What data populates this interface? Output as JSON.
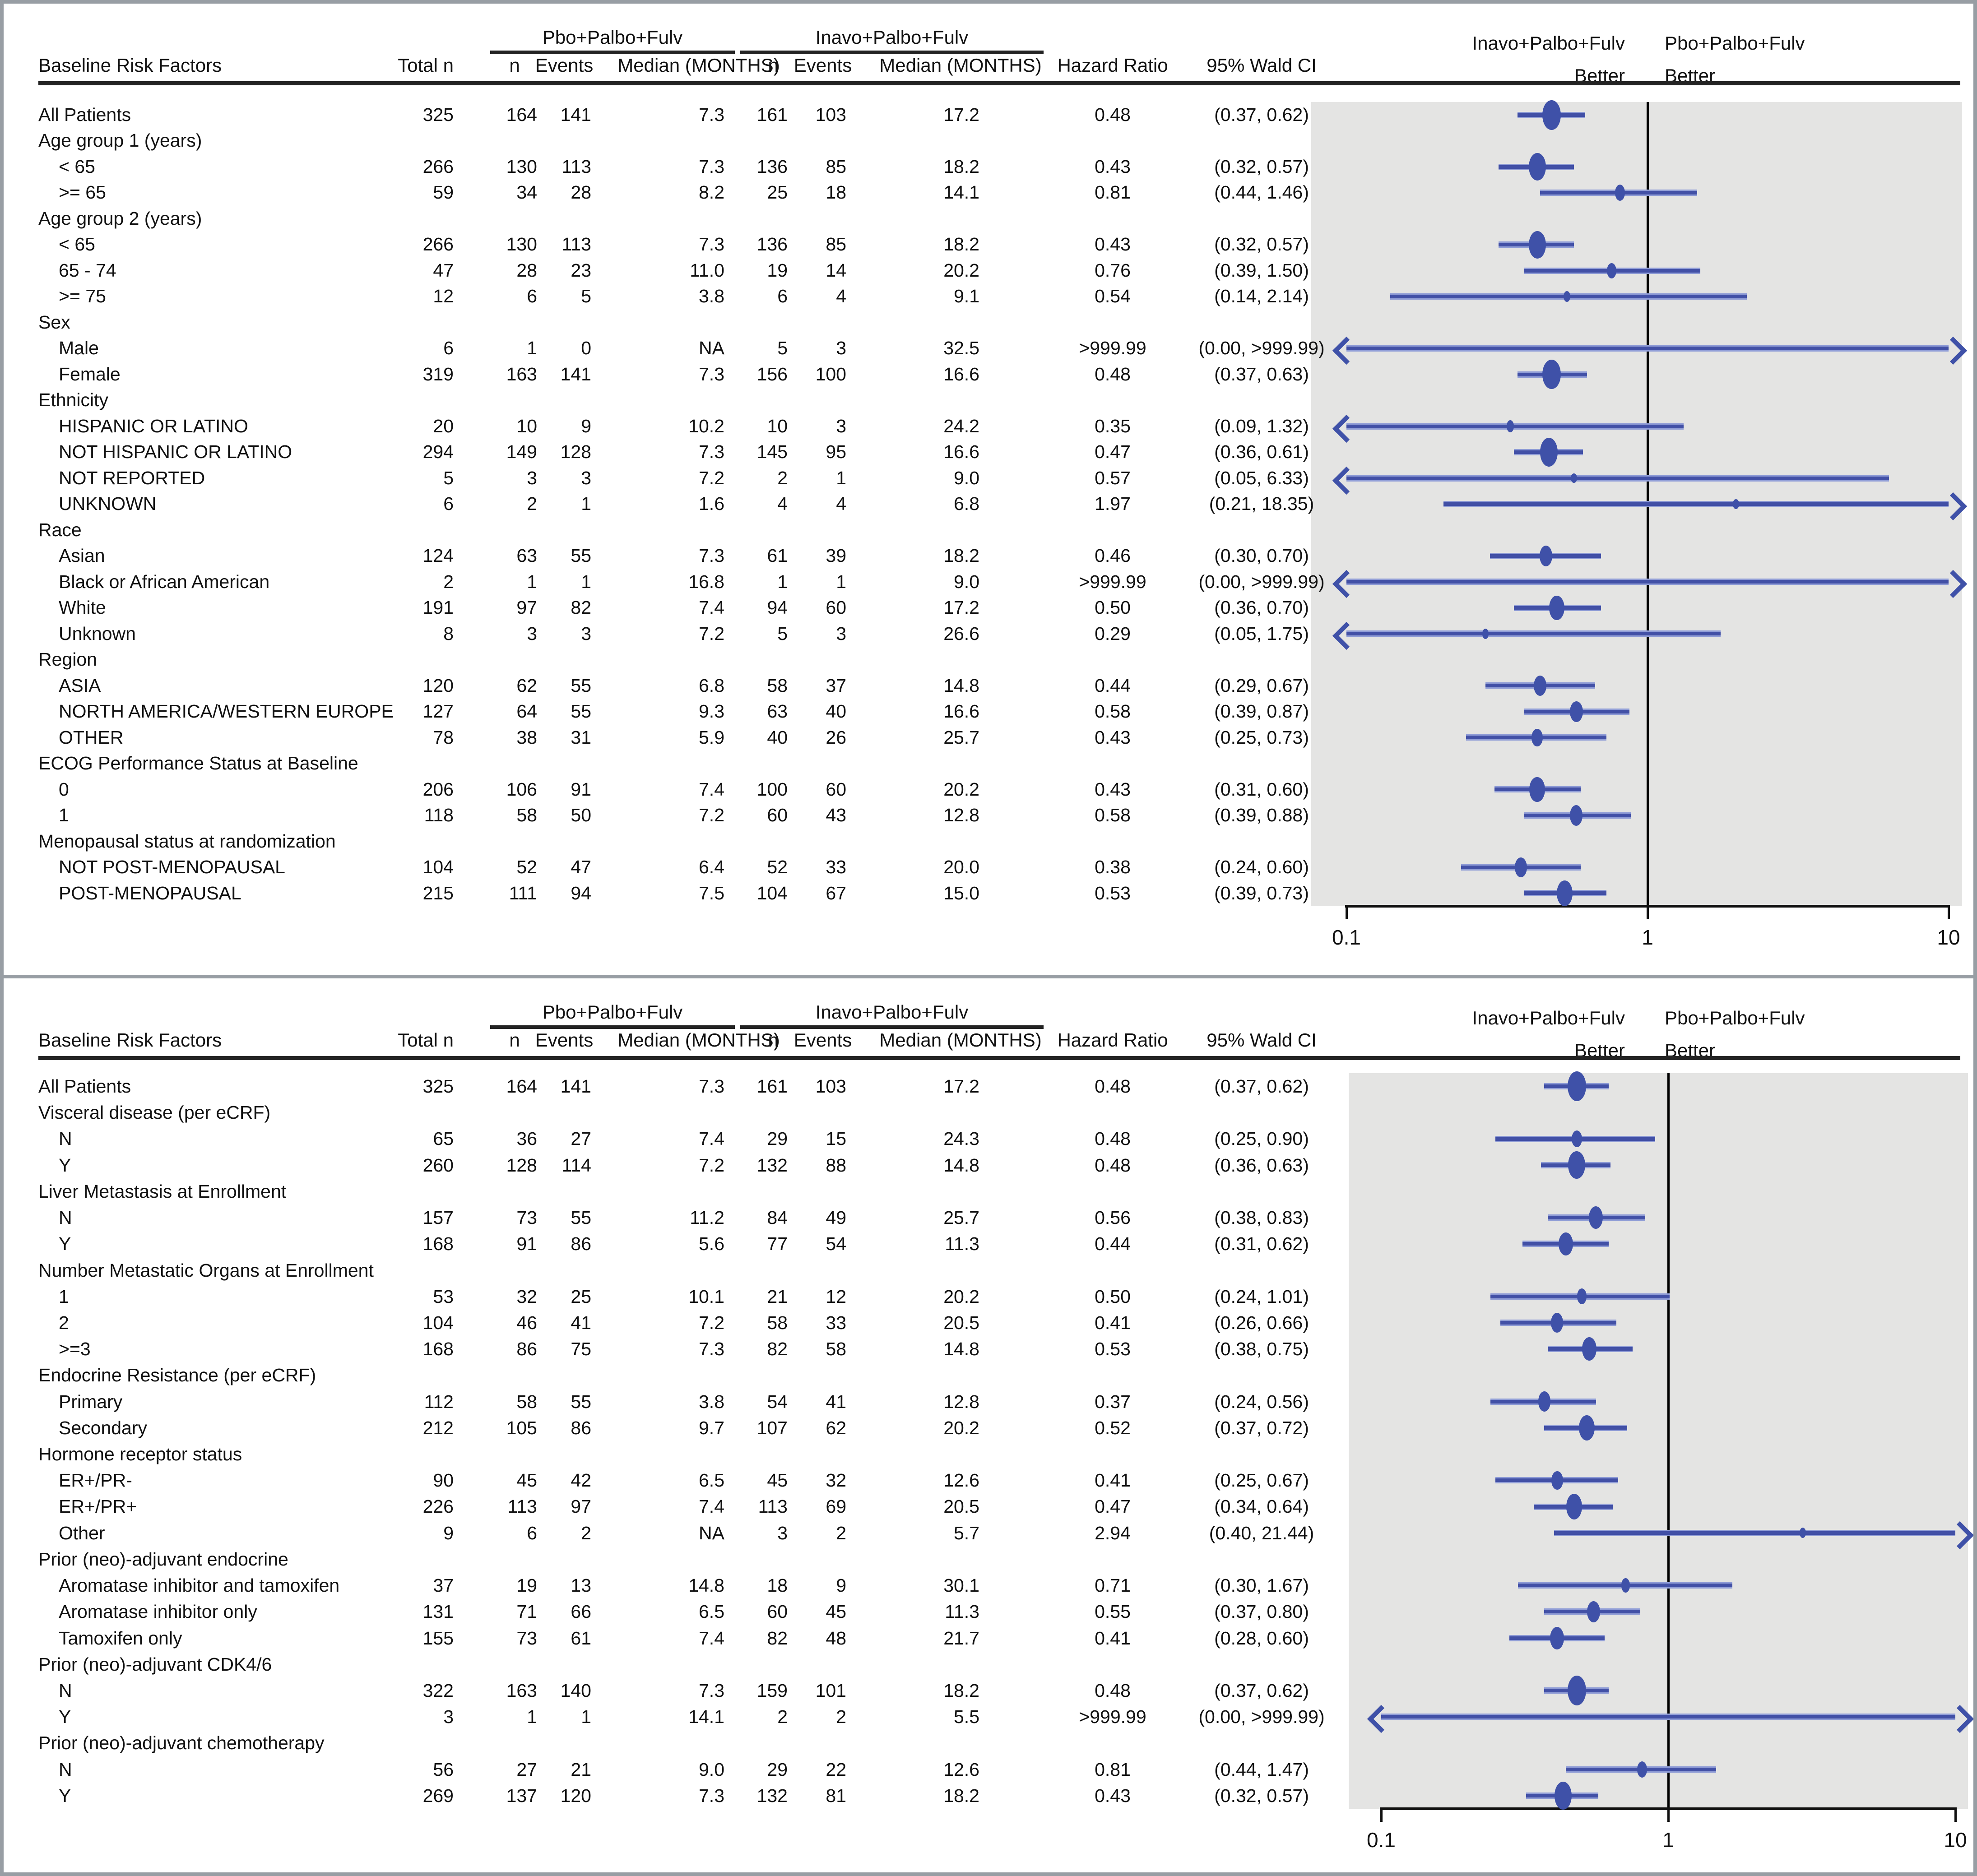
{
  "header": {
    "risk_col": "Baseline Risk Factors",
    "total_col": "Total n",
    "n_col": "n",
    "events_col": "Events",
    "median_col": "Median (MONTHS)",
    "hr_col": "Hazard Ratio",
    "ci_col": "95% Wald CI",
    "arm_pbo": "Pbo+Palbo+Fulv",
    "arm_inavo": "Inavo+Palbo+Fulv"
  },
  "plot_header": {
    "left_line1": "Inavo+Palbo+Fulv",
    "left_line2": "Better",
    "right_line1": "Pbo+Palbo+Fulv",
    "right_line2": "Better"
  },
  "axis": {
    "ticks": [
      "0.1",
      "1",
      "10"
    ]
  },
  "colors": {
    "marker": "#3f51a8",
    "line_core": "#4250a6",
    "line_casing": "#8f9cd6",
    "plot_bg": "#e4e4e3",
    "ref_line": "#000000",
    "text": "#111111",
    "rule": "#232323",
    "frame": "#989ea4"
  },
  "chart_data": {
    "type": "forest",
    "x_scale": "log10",
    "x_range": [
      0.1,
      10
    ],
    "panels": [
      {
        "rows": [
          {
            "label": "All Patients",
            "total": 325,
            "n1": 164,
            "e1": 141,
            "m1": "7.3",
            "n2": 161,
            "e2": 103,
            "m2": "17.2",
            "hr": "0.48",
            "ci": "(0.37, 0.62)",
            "hr_value": 0.48,
            "ci_low": 0.37,
            "ci_high": 0.62
          },
          {
            "label": "Age group 1 (years)"
          },
          {
            "label": "< 65",
            "indent": 1,
            "total": 266,
            "n1": 130,
            "e1": 113,
            "m1": "7.3",
            "n2": 136,
            "e2": 85,
            "m2": "18.2",
            "hr": "0.43",
            "ci": "(0.32, 0.57)",
            "hr_value": 0.43,
            "ci_low": 0.32,
            "ci_high": 0.57
          },
          {
            "label": ">= 65",
            "indent": 1,
            "total": 59,
            "n1": 34,
            "e1": 28,
            "m1": "8.2",
            "n2": 25,
            "e2": 18,
            "m2": "14.1",
            "hr": "0.81",
            "ci": "(0.44, 1.46)",
            "hr_value": 0.81,
            "ci_low": 0.44,
            "ci_high": 1.46
          },
          {
            "label": "Age group 2 (years)"
          },
          {
            "label": "< 65",
            "indent": 1,
            "total": 266,
            "n1": 130,
            "e1": 113,
            "m1": "7.3",
            "n2": 136,
            "e2": 85,
            "m2": "18.2",
            "hr": "0.43",
            "ci": "(0.32, 0.57)",
            "hr_value": 0.43,
            "ci_low": 0.32,
            "ci_high": 0.57
          },
          {
            "label": "65 - 74",
            "indent": 1,
            "total": 47,
            "n1": 28,
            "e1": 23,
            "m1": "11.0",
            "n2": 19,
            "e2": 14,
            "m2": "20.2",
            "hr": "0.76",
            "ci": "(0.39, 1.50)",
            "hr_value": 0.76,
            "ci_low": 0.39,
            "ci_high": 1.5
          },
          {
            "label": ">= 75",
            "indent": 1,
            "total": 12,
            "n1": 6,
            "e1": 5,
            "m1": "3.8",
            "n2": 6,
            "e2": 4,
            "m2": "9.1",
            "hr": "0.54",
            "ci": "(0.14, 2.14)",
            "hr_value": 0.54,
            "ci_low": 0.14,
            "ci_high": 2.14
          },
          {
            "label": "Sex"
          },
          {
            "label": "Male",
            "indent": 1,
            "total": 6,
            "n1": 1,
            "e1": 0,
            "m1": "NA",
            "n2": 5,
            "e2": 3,
            "m2": "32.5",
            "hr": ">999.99",
            "ci": "(0.00, >999.99)",
            "hr_value": null,
            "ci_low": 0,
            "ci_high": 1000
          },
          {
            "label": "Female",
            "indent": 1,
            "total": 319,
            "n1": 163,
            "e1": 141,
            "m1": "7.3",
            "n2": 156,
            "e2": 100,
            "m2": "16.6",
            "hr": "0.48",
            "ci": "(0.37, 0.63)",
            "hr_value": 0.48,
            "ci_low": 0.37,
            "ci_high": 0.63
          },
          {
            "label": "Ethnicity"
          },
          {
            "label": "HISPANIC OR LATINO",
            "indent": 1,
            "total": 20,
            "n1": 10,
            "e1": 9,
            "m1": "10.2",
            "n2": 10,
            "e2": 3,
            "m2": "24.2",
            "hr": "0.35",
            "ci": "(0.09, 1.32)",
            "hr_value": 0.35,
            "ci_low": 0.09,
            "ci_high": 1.32
          },
          {
            "label": "NOT HISPANIC OR LATINO",
            "indent": 1,
            "total": 294,
            "n1": 149,
            "e1": 128,
            "m1": "7.3",
            "n2": 145,
            "e2": 95,
            "m2": "16.6",
            "hr": "0.47",
            "ci": "(0.36, 0.61)",
            "hr_value": 0.47,
            "ci_low": 0.36,
            "ci_high": 0.61
          },
          {
            "label": "NOT REPORTED",
            "indent": 1,
            "total": 5,
            "n1": 3,
            "e1": 3,
            "m1": "7.2",
            "n2": 2,
            "e2": 1,
            "m2": "9.0",
            "hr": "0.57",
            "ci": "(0.05, 6.33)",
            "hr_value": 0.57,
            "ci_low": 0.05,
            "ci_high": 6.33
          },
          {
            "label": "UNKNOWN",
            "indent": 1,
            "total": 6,
            "n1": 2,
            "e1": 1,
            "m1": "1.6",
            "n2": 4,
            "e2": 4,
            "m2": "6.8",
            "hr": "1.97",
            "ci": "(0.21, 18.35)",
            "hr_value": 1.97,
            "ci_low": 0.21,
            "ci_high": 18.35
          },
          {
            "label": "Race"
          },
          {
            "label": "Asian",
            "indent": 1,
            "total": 124,
            "n1": 63,
            "e1": 55,
            "m1": "7.3",
            "n2": 61,
            "e2": 39,
            "m2": "18.2",
            "hr": "0.46",
            "ci": "(0.30, 0.70)",
            "hr_value": 0.46,
            "ci_low": 0.3,
            "ci_high": 0.7
          },
          {
            "label": "Black or African American",
            "indent": 1,
            "total": 2,
            "n1": 1,
            "e1": 1,
            "m1": "16.8",
            "n2": 1,
            "e2": 1,
            "m2": "9.0",
            "hr": ">999.99",
            "ci": "(0.00, >999.99)",
            "hr_value": null,
            "ci_low": 0,
            "ci_high": 1000
          },
          {
            "label": "White",
            "indent": 1,
            "total": 191,
            "n1": 97,
            "e1": 82,
            "m1": "7.4",
            "n2": 94,
            "e2": 60,
            "m2": "17.2",
            "hr": "0.50",
            "ci": "(0.36, 0.70)",
            "hr_value": 0.5,
            "ci_low": 0.36,
            "ci_high": 0.7
          },
          {
            "label": "Unknown",
            "indent": 1,
            "total": 8,
            "n1": 3,
            "e1": 3,
            "m1": "7.2",
            "n2": 5,
            "e2": 3,
            "m2": "26.6",
            "hr": "0.29",
            "ci": "(0.05, 1.75)",
            "hr_value": 0.29,
            "ci_low": 0.05,
            "ci_high": 1.75
          },
          {
            "label": "Region"
          },
          {
            "label": "ASIA",
            "indent": 1,
            "total": 120,
            "n1": 62,
            "e1": 55,
            "m1": "6.8",
            "n2": 58,
            "e2": 37,
            "m2": "14.8",
            "hr": "0.44",
            "ci": "(0.29, 0.67)",
            "hr_value": 0.44,
            "ci_low": 0.29,
            "ci_high": 0.67
          },
          {
            "label": "NORTH AMERICA/WESTERN EUROPE",
            "indent": 1,
            "total": 127,
            "n1": 64,
            "e1": 55,
            "m1": "9.3",
            "n2": 63,
            "e2": 40,
            "m2": "16.6",
            "hr": "0.58",
            "ci": "(0.39, 0.87)",
            "hr_value": 0.58,
            "ci_low": 0.39,
            "ci_high": 0.87
          },
          {
            "label": "OTHER",
            "indent": 1,
            "total": 78,
            "n1": 38,
            "e1": 31,
            "m1": "5.9",
            "n2": 40,
            "e2": 26,
            "m2": "25.7",
            "hr": "0.43",
            "ci": "(0.25, 0.73)",
            "hr_value": 0.43,
            "ci_low": 0.25,
            "ci_high": 0.73
          },
          {
            "label": "ECOG Performance Status at Baseline"
          },
          {
            "label": "0",
            "indent": 1,
            "total": 206,
            "n1": 106,
            "e1": 91,
            "m1": "7.4",
            "n2": 100,
            "e2": 60,
            "m2": "20.2",
            "hr": "0.43",
            "ci": "(0.31, 0.60)",
            "hr_value": 0.43,
            "ci_low": 0.31,
            "ci_high": 0.6
          },
          {
            "label": "1",
            "indent": 1,
            "total": 118,
            "n1": 58,
            "e1": 50,
            "m1": "7.2",
            "n2": 60,
            "e2": 43,
            "m2": "12.8",
            "hr": "0.58",
            "ci": "(0.39, 0.88)",
            "hr_value": 0.58,
            "ci_low": 0.39,
            "ci_high": 0.88
          },
          {
            "label": "Menopausal status at randomization"
          },
          {
            "label": "NOT POST-MENOPAUSAL",
            "indent": 1,
            "total": 104,
            "n1": 52,
            "e1": 47,
            "m1": "6.4",
            "n2": 52,
            "e2": 33,
            "m2": "20.0",
            "hr": "0.38",
            "ci": "(0.24, 0.60)",
            "hr_value": 0.38,
            "ci_low": 0.24,
            "ci_high": 0.6
          },
          {
            "label": "POST-MENOPAUSAL",
            "indent": 1,
            "total": 215,
            "n1": 111,
            "e1": 94,
            "m1": "7.5",
            "n2": 104,
            "e2": 67,
            "m2": "15.0",
            "hr": "0.53",
            "ci": "(0.39, 0.73)",
            "hr_value": 0.53,
            "ci_low": 0.39,
            "ci_high": 0.73
          }
        ]
      },
      {
        "rows": [
          {
            "label": "All Patients",
            "total": 325,
            "n1": 164,
            "e1": 141,
            "m1": "7.3",
            "n2": 161,
            "e2": 103,
            "m2": "17.2",
            "hr": "0.48",
            "ci": "(0.37, 0.62)",
            "hr_value": 0.48,
            "ci_low": 0.37,
            "ci_high": 0.62
          },
          {
            "label": "Visceral disease (per eCRF)"
          },
          {
            "label": "N",
            "indent": 1,
            "total": 65,
            "n1": 36,
            "e1": 27,
            "m1": "7.4",
            "n2": 29,
            "e2": 15,
            "m2": "24.3",
            "hr": "0.48",
            "ci": "(0.25, 0.90)",
            "hr_value": 0.48,
            "ci_low": 0.25,
            "ci_high": 0.9
          },
          {
            "label": "Y",
            "indent": 1,
            "total": 260,
            "n1": 128,
            "e1": 114,
            "m1": "7.2",
            "n2": 132,
            "e2": 88,
            "m2": "14.8",
            "hr": "0.48",
            "ci": "(0.36, 0.63)",
            "hr_value": 0.48,
            "ci_low": 0.36,
            "ci_high": 0.63
          },
          {
            "label": "Liver Metastasis at Enrollment"
          },
          {
            "label": "N",
            "indent": 1,
            "total": 157,
            "n1": 73,
            "e1": 55,
            "m1": "11.2",
            "n2": 84,
            "e2": 49,
            "m2": "25.7",
            "hr": "0.56",
            "ci": "(0.38, 0.83)",
            "hr_value": 0.56,
            "ci_low": 0.38,
            "ci_high": 0.83
          },
          {
            "label": "Y",
            "indent": 1,
            "total": 168,
            "n1": 91,
            "e1": 86,
            "m1": "5.6",
            "n2": 77,
            "e2": 54,
            "m2": "11.3",
            "hr": "0.44",
            "ci": "(0.31, 0.62)",
            "hr_value": 0.44,
            "ci_low": 0.31,
            "ci_high": 0.62
          },
          {
            "label": "Number Metastatic Organs at Enrollment"
          },
          {
            "label": "1",
            "indent": 1,
            "total": 53,
            "n1": 32,
            "e1": 25,
            "m1": "10.1",
            "n2": 21,
            "e2": 12,
            "m2": "20.2",
            "hr": "0.50",
            "ci": "(0.24, 1.01)",
            "hr_value": 0.5,
            "ci_low": 0.24,
            "ci_high": 1.01
          },
          {
            "label": "2",
            "indent": 1,
            "total": 104,
            "n1": 46,
            "e1": 41,
            "m1": "7.2",
            "n2": 58,
            "e2": 33,
            "m2": "20.5",
            "hr": "0.41",
            "ci": "(0.26, 0.66)",
            "hr_value": 0.41,
            "ci_low": 0.26,
            "ci_high": 0.66
          },
          {
            "label": ">=3",
            "indent": 1,
            "total": 168,
            "n1": 86,
            "e1": 75,
            "m1": "7.3",
            "n2": 82,
            "e2": 58,
            "m2": "14.8",
            "hr": "0.53",
            "ci": "(0.38, 0.75)",
            "hr_value": 0.53,
            "ci_low": 0.38,
            "ci_high": 0.75
          },
          {
            "label": "Endocrine Resistance (per eCRF)"
          },
          {
            "label": "Primary",
            "indent": 1,
            "total": 112,
            "n1": 58,
            "e1": 55,
            "m1": "3.8",
            "n2": 54,
            "e2": 41,
            "m2": "12.8",
            "hr": "0.37",
            "ci": "(0.24, 0.56)",
            "hr_value": 0.37,
            "ci_low": 0.24,
            "ci_high": 0.56
          },
          {
            "label": "Secondary",
            "indent": 1,
            "total": 212,
            "n1": 105,
            "e1": 86,
            "m1": "9.7",
            "n2": 107,
            "e2": 62,
            "m2": "20.2",
            "hr": "0.52",
            "ci": "(0.37, 0.72)",
            "hr_value": 0.52,
            "ci_low": 0.37,
            "ci_high": 0.72
          },
          {
            "label": "Hormone receptor status"
          },
          {
            "label": "ER+/PR-",
            "indent": 1,
            "total": 90,
            "n1": 45,
            "e1": 42,
            "m1": "6.5",
            "n2": 45,
            "e2": 32,
            "m2": "12.6",
            "hr": "0.41",
            "ci": "(0.25, 0.67)",
            "hr_value": 0.41,
            "ci_low": 0.25,
            "ci_high": 0.67
          },
          {
            "label": "ER+/PR+",
            "indent": 1,
            "total": 226,
            "n1": 113,
            "e1": 97,
            "m1": "7.4",
            "n2": 113,
            "e2": 69,
            "m2": "20.5",
            "hr": "0.47",
            "ci": "(0.34, 0.64)",
            "hr_value": 0.47,
            "ci_low": 0.34,
            "ci_high": 0.64
          },
          {
            "label": "Other",
            "indent": 1,
            "total": 9,
            "n1": 6,
            "e1": 2,
            "m1": "NA",
            "n2": 3,
            "e2": 2,
            "m2": "5.7",
            "hr": "2.94",
            "ci": "(0.40, 21.44)",
            "hr_value": 2.94,
            "ci_low": 0.4,
            "ci_high": 21.44
          },
          {
            "label": "Prior (neo)-adjuvant endocrine"
          },
          {
            "label": "Aromatase inhibitor and tamoxifen",
            "indent": 1,
            "total": 37,
            "n1": 19,
            "e1": 13,
            "m1": "14.8",
            "n2": 18,
            "e2": 9,
            "m2": "30.1",
            "hr": "0.71",
            "ci": "(0.30, 1.67)",
            "hr_value": 0.71,
            "ci_low": 0.3,
            "ci_high": 1.67
          },
          {
            "label": "Aromatase inhibitor only",
            "indent": 1,
            "total": 131,
            "n1": 71,
            "e1": 66,
            "m1": "6.5",
            "n2": 60,
            "e2": 45,
            "m2": "11.3",
            "hr": "0.55",
            "ci": "(0.37, 0.80)",
            "hr_value": 0.55,
            "ci_low": 0.37,
            "ci_high": 0.8
          },
          {
            "label": "Tamoxifen only",
            "indent": 1,
            "total": 155,
            "n1": 73,
            "e1": 61,
            "m1": "7.4",
            "n2": 82,
            "e2": 48,
            "m2": "21.7",
            "hr": "0.41",
            "ci": "(0.28, 0.60)",
            "hr_value": 0.41,
            "ci_low": 0.28,
            "ci_high": 0.6
          },
          {
            "label": "Prior (neo)-adjuvant CDK4/6"
          },
          {
            "label": "N",
            "indent": 1,
            "total": 322,
            "n1": 163,
            "e1": 140,
            "m1": "7.3",
            "n2": 159,
            "e2": 101,
            "m2": "18.2",
            "hr": "0.48",
            "ci": "(0.37, 0.62)",
            "hr_value": 0.48,
            "ci_low": 0.37,
            "ci_high": 0.62
          },
          {
            "label": "Y",
            "indent": 1,
            "total": 3,
            "n1": 1,
            "e1": 1,
            "m1": "14.1",
            "n2": 2,
            "e2": 2,
            "m2": "5.5",
            "hr": ">999.99",
            "ci": "(0.00, >999.99)",
            "hr_value": null,
            "ci_low": 0,
            "ci_high": 1000
          },
          {
            "label": "Prior (neo)-adjuvant chemotherapy"
          },
          {
            "label": "N",
            "indent": 1,
            "total": 56,
            "n1": 27,
            "e1": 21,
            "m1": "9.0",
            "n2": 29,
            "e2": 22,
            "m2": "12.6",
            "hr": "0.81",
            "ci": "(0.44, 1.47)",
            "hr_value": 0.81,
            "ci_low": 0.44,
            "ci_high": 1.47
          },
          {
            "label": "Y",
            "indent": 1,
            "total": 269,
            "n1": 137,
            "e1": 120,
            "m1": "7.3",
            "n2": 132,
            "e2": 81,
            "m2": "18.2",
            "hr": "0.43",
            "ci": "(0.32, 0.57)",
            "hr_value": 0.43,
            "ci_low": 0.32,
            "ci_high": 0.57
          }
        ]
      }
    ]
  }
}
